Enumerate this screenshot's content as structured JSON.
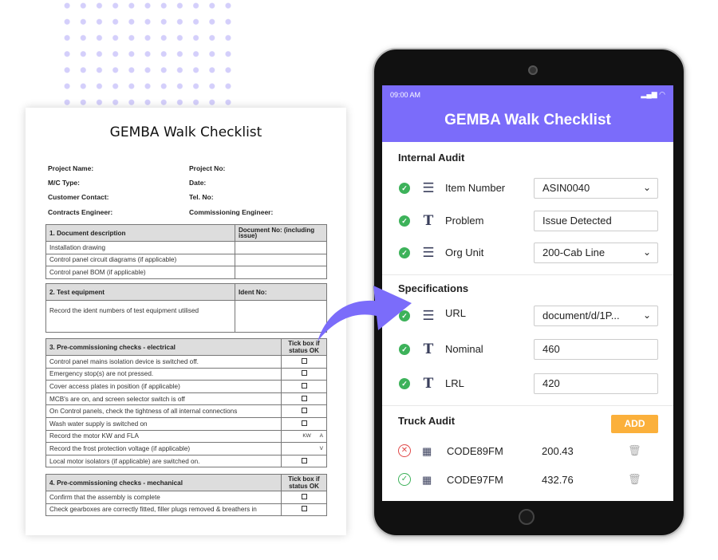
{
  "paper": {
    "title": "GEMBA Walk Checklist",
    "fields": [
      "Project Name:",
      "Project No:",
      "M/C Type:",
      "Date:",
      "Customer Contact:",
      "Tel. No:",
      "Contracts Engineer:",
      "Commissioning Engineer:"
    ],
    "t1": {
      "h1": "1. Document description",
      "h2": "Document No: (including issue)",
      "rows": [
        "Installation drawing",
        "Control panel circuit diagrams (if applicable)",
        "Control panel BOM (if applicable)"
      ]
    },
    "t2": {
      "h1": "2. Test equipment",
      "h2": "Ident No:",
      "row": "Record the ident numbers of test equipment utilised"
    },
    "t3": {
      "h1": "3. Pre-commissioning checks - electrical",
      "h2": "Tick box if status OK",
      "rows": [
        "Control panel mains isolation device is switched off.",
        "Emergency stop(s) are not pressed.",
        "Cover access plates in position (if applicable)",
        "MCB's are on, and screen selector switch is off",
        "On Control panels, check the tightness of all internal connections",
        "Wash water supply is switched on",
        "Record the motor KW and FLA",
        "Record the frost protection voltage (if applicable)",
        "Local motor isolators (if applicable) are switched on."
      ],
      "kw": "KW",
      "a": "A",
      "v": "V"
    },
    "t4": {
      "h1": "4. Pre-commissioning checks - mechanical",
      "h2": "Tick box if status OK",
      "rows": [
        "Confirm that the assembly is complete",
        "Check gearboxes are correctly fitted, filler plugs removed & breathers in"
      ]
    }
  },
  "app": {
    "status_time": "09:00 AM",
    "title": "GEMBA Walk Checklist",
    "accent": "#7B6CFA",
    "internal": {
      "label": "Internal Audit",
      "rows": [
        {
          "label": "Item Number",
          "value": "ASIN0040",
          "type": "dropdown"
        },
        {
          "label": "Problem",
          "value": "Issue Detected",
          "type": "text"
        },
        {
          "label": "Org Unit",
          "value": "200-Cab Line",
          "type": "dropdown"
        }
      ]
    },
    "spec": {
      "label": "Specifications",
      "rows": [
        {
          "label": "URL",
          "value": "document/d/1P...",
          "type": "dropdown"
        },
        {
          "label": "Nominal",
          "value": "460",
          "type": "text"
        },
        {
          "label": "LRL",
          "value": "420",
          "type": "text"
        }
      ]
    },
    "truck": {
      "label": "Truck Audit",
      "add": "ADD",
      "rows": [
        {
          "status": "fail",
          "code": "CODE89FM",
          "value": "200.43"
        },
        {
          "status": "pass",
          "code": "CODE97FM",
          "value": "432.76"
        }
      ]
    }
  }
}
